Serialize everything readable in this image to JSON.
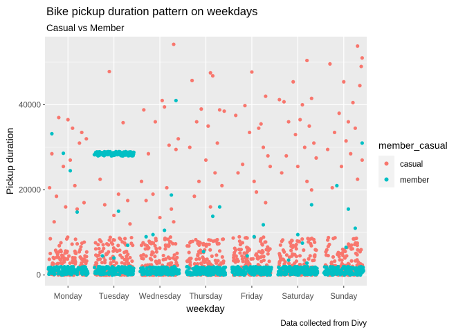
{
  "chart_data": {
    "type": "scatter",
    "title": "Bike pickup duration pattern on weekdays",
    "subtitle": "Casual vs Member",
    "caption": "Data collected from Divy",
    "xlabel": "weekday",
    "ylabel": "Pickup duration",
    "categories": [
      "Monday",
      "Tuesday",
      "Wednesday",
      "Thursday",
      "Friday",
      "Saturday",
      "Sunday"
    ],
    "ylim": [
      -2500,
      56000
    ],
    "yticks": [
      0,
      20000,
      40000
    ],
    "ytick_labels": [
      "0",
      "20000",
      "40000"
    ],
    "grid": true,
    "legend": {
      "title": "member_casual",
      "position": "right",
      "entries": [
        {
          "label": "casual",
          "color": "#F8766D"
        },
        {
          "label": "member",
          "color": "#00BFC4"
        }
      ]
    },
    "series": [
      {
        "name": "casual",
        "color": "#F8766D",
        "outliers": [
          [
            -0.2,
            37000
          ],
          [
            0.1,
            34500
          ],
          [
            0.25,
            31000
          ],
          [
            -0.35,
            28500
          ],
          [
            0.05,
            27000
          ],
          [
            -0.1,
            25500
          ],
          [
            0.3,
            33500
          ],
          [
            -0.4,
            20500
          ],
          [
            0.15,
            21000
          ],
          [
            -0.25,
            18500
          ],
          [
            0.35,
            17000
          ],
          [
            -0.05,
            16000
          ],
          [
            0.2,
            15500
          ],
          [
            -0.3,
            12500
          ],
          [
            0.4,
            32000
          ],
          [
            0.0,
            36500
          ],
          [
            -0.1,
            47800
          ],
          [
            0.2,
            35800
          ],
          [
            -0.3,
            22500
          ],
          [
            0.1,
            19000
          ],
          [
            -0.2,
            16500
          ],
          [
            0.3,
            17500
          ],
          [
            0.0,
            14000
          ],
          [
            0.35,
            12000
          ],
          [
            0.3,
            54200
          ],
          [
            -0.35,
            38800
          ],
          [
            0.05,
            41000
          ],
          [
            0.1,
            39500
          ],
          [
            -0.1,
            36000
          ],
          [
            0.4,
            32000
          ],
          [
            0.2,
            30500
          ],
          [
            -0.25,
            28500
          ],
          [
            0.35,
            29500
          ],
          [
            -0.4,
            22000
          ],
          [
            0.15,
            20500
          ],
          [
            -0.15,
            19000
          ],
          [
            0.25,
            15500
          ],
          [
            -0.3,
            17500
          ],
          [
            0.0,
            13500
          ],
          [
            0.3,
            12500
          ],
          [
            -0.3,
            45700
          ],
          [
            0.1,
            47500
          ],
          [
            0.15,
            46800
          ],
          [
            -0.1,
            39000
          ],
          [
            0.3,
            38800
          ],
          [
            0.4,
            38500
          ],
          [
            -0.2,
            36000
          ],
          [
            0.05,
            35000
          ],
          [
            -0.35,
            30000
          ],
          [
            0.25,
            31000
          ],
          [
            0.0,
            27000
          ],
          [
            0.2,
            24000
          ],
          [
            -0.15,
            22000
          ],
          [
            0.35,
            21000
          ],
          [
            -0.25,
            18500
          ],
          [
            0.1,
            16000
          ],
          [
            -0.15,
            39800
          ],
          [
            0.0,
            47700
          ],
          [
            0.3,
            42000
          ],
          [
            -0.35,
            37500
          ],
          [
            0.2,
            35500
          ],
          [
            0.15,
            34500
          ],
          [
            -0.05,
            33500
          ],
          [
            0.25,
            30000
          ],
          [
            0.35,
            28000
          ],
          [
            0.4,
            25500
          ],
          [
            -0.3,
            24000
          ],
          [
            0.05,
            22000
          ],
          [
            -0.2,
            26000
          ],
          [
            0.1,
            19500
          ],
          [
            0.3,
            17000
          ],
          [
            -0.4,
            41200
          ],
          [
            -0.3,
            40700
          ],
          [
            -0.1,
            45400
          ],
          [
            0.2,
            50400
          ],
          [
            0.3,
            41500
          ],
          [
            0.1,
            40000
          ],
          [
            -0.2,
            36000
          ],
          [
            0.05,
            36500
          ],
          [
            0.25,
            35000
          ],
          [
            -0.05,
            33000
          ],
          [
            0.15,
            30000
          ],
          [
            0.35,
            31000
          ],
          [
            -0.25,
            28000
          ],
          [
            0.4,
            27500
          ],
          [
            0.0,
            25500
          ],
          [
            -0.35,
            24000
          ],
          [
            0.2,
            22000
          ],
          [
            0.3,
            20000
          ],
          [
            -0.3,
            49600
          ],
          [
            0.3,
            53800
          ],
          [
            0.4,
            51000
          ],
          [
            0.38,
            49000
          ],
          [
            0.0,
            45400
          ],
          [
            0.35,
            44500
          ],
          [
            0.2,
            40500
          ],
          [
            -0.1,
            38000
          ],
          [
            0.1,
            36000
          ],
          [
            0.25,
            34500
          ],
          [
            -0.2,
            33500
          ],
          [
            0.05,
            31500
          ],
          [
            -0.35,
            29500
          ],
          [
            0.15,
            28500
          ],
          [
            0.4,
            27000
          ],
          [
            -0.05,
            25500
          ],
          [
            0.3,
            22500
          ],
          [
            -0.25,
            20500
          ]
        ]
      },
      {
        "name": "member",
        "color": "#00BFC4",
        "outliers": [
          [
            -0.35,
            33200
          ],
          [
            0.05,
            24500
          ],
          [
            0.2,
            14800
          ],
          [
            -0.1,
            28600
          ],
          [
            0.1,
            15000
          ],
          [
            -0.25,
            4500
          ],
          [
            0.3,
            7000
          ],
          [
            0.0,
            4000
          ],
          [
            0.35,
            41000
          ],
          [
            0.25,
            18800
          ],
          [
            0.1,
            10500
          ],
          [
            -0.15,
            9500
          ],
          [
            -0.3,
            9000
          ],
          [
            0.15,
            13800
          ],
          [
            -0.05,
            5500
          ],
          [
            0.3,
            16000
          ],
          [
            0.25,
            11800
          ],
          [
            -0.1,
            4500
          ],
          [
            0.05,
            9000
          ],
          [
            0.3,
            16500
          ],
          [
            0.1,
            7500
          ],
          [
            -0.2,
            3500
          ],
          [
            0.2,
            2800
          ],
          [
            0.0,
            9500
          ],
          [
            0.4,
            31000
          ],
          [
            -0.15,
            21000
          ],
          [
            0.1,
            15500
          ],
          [
            0.25,
            11000
          ],
          [
            0.05,
            6500
          ]
        ]
      }
    ]
  }
}
